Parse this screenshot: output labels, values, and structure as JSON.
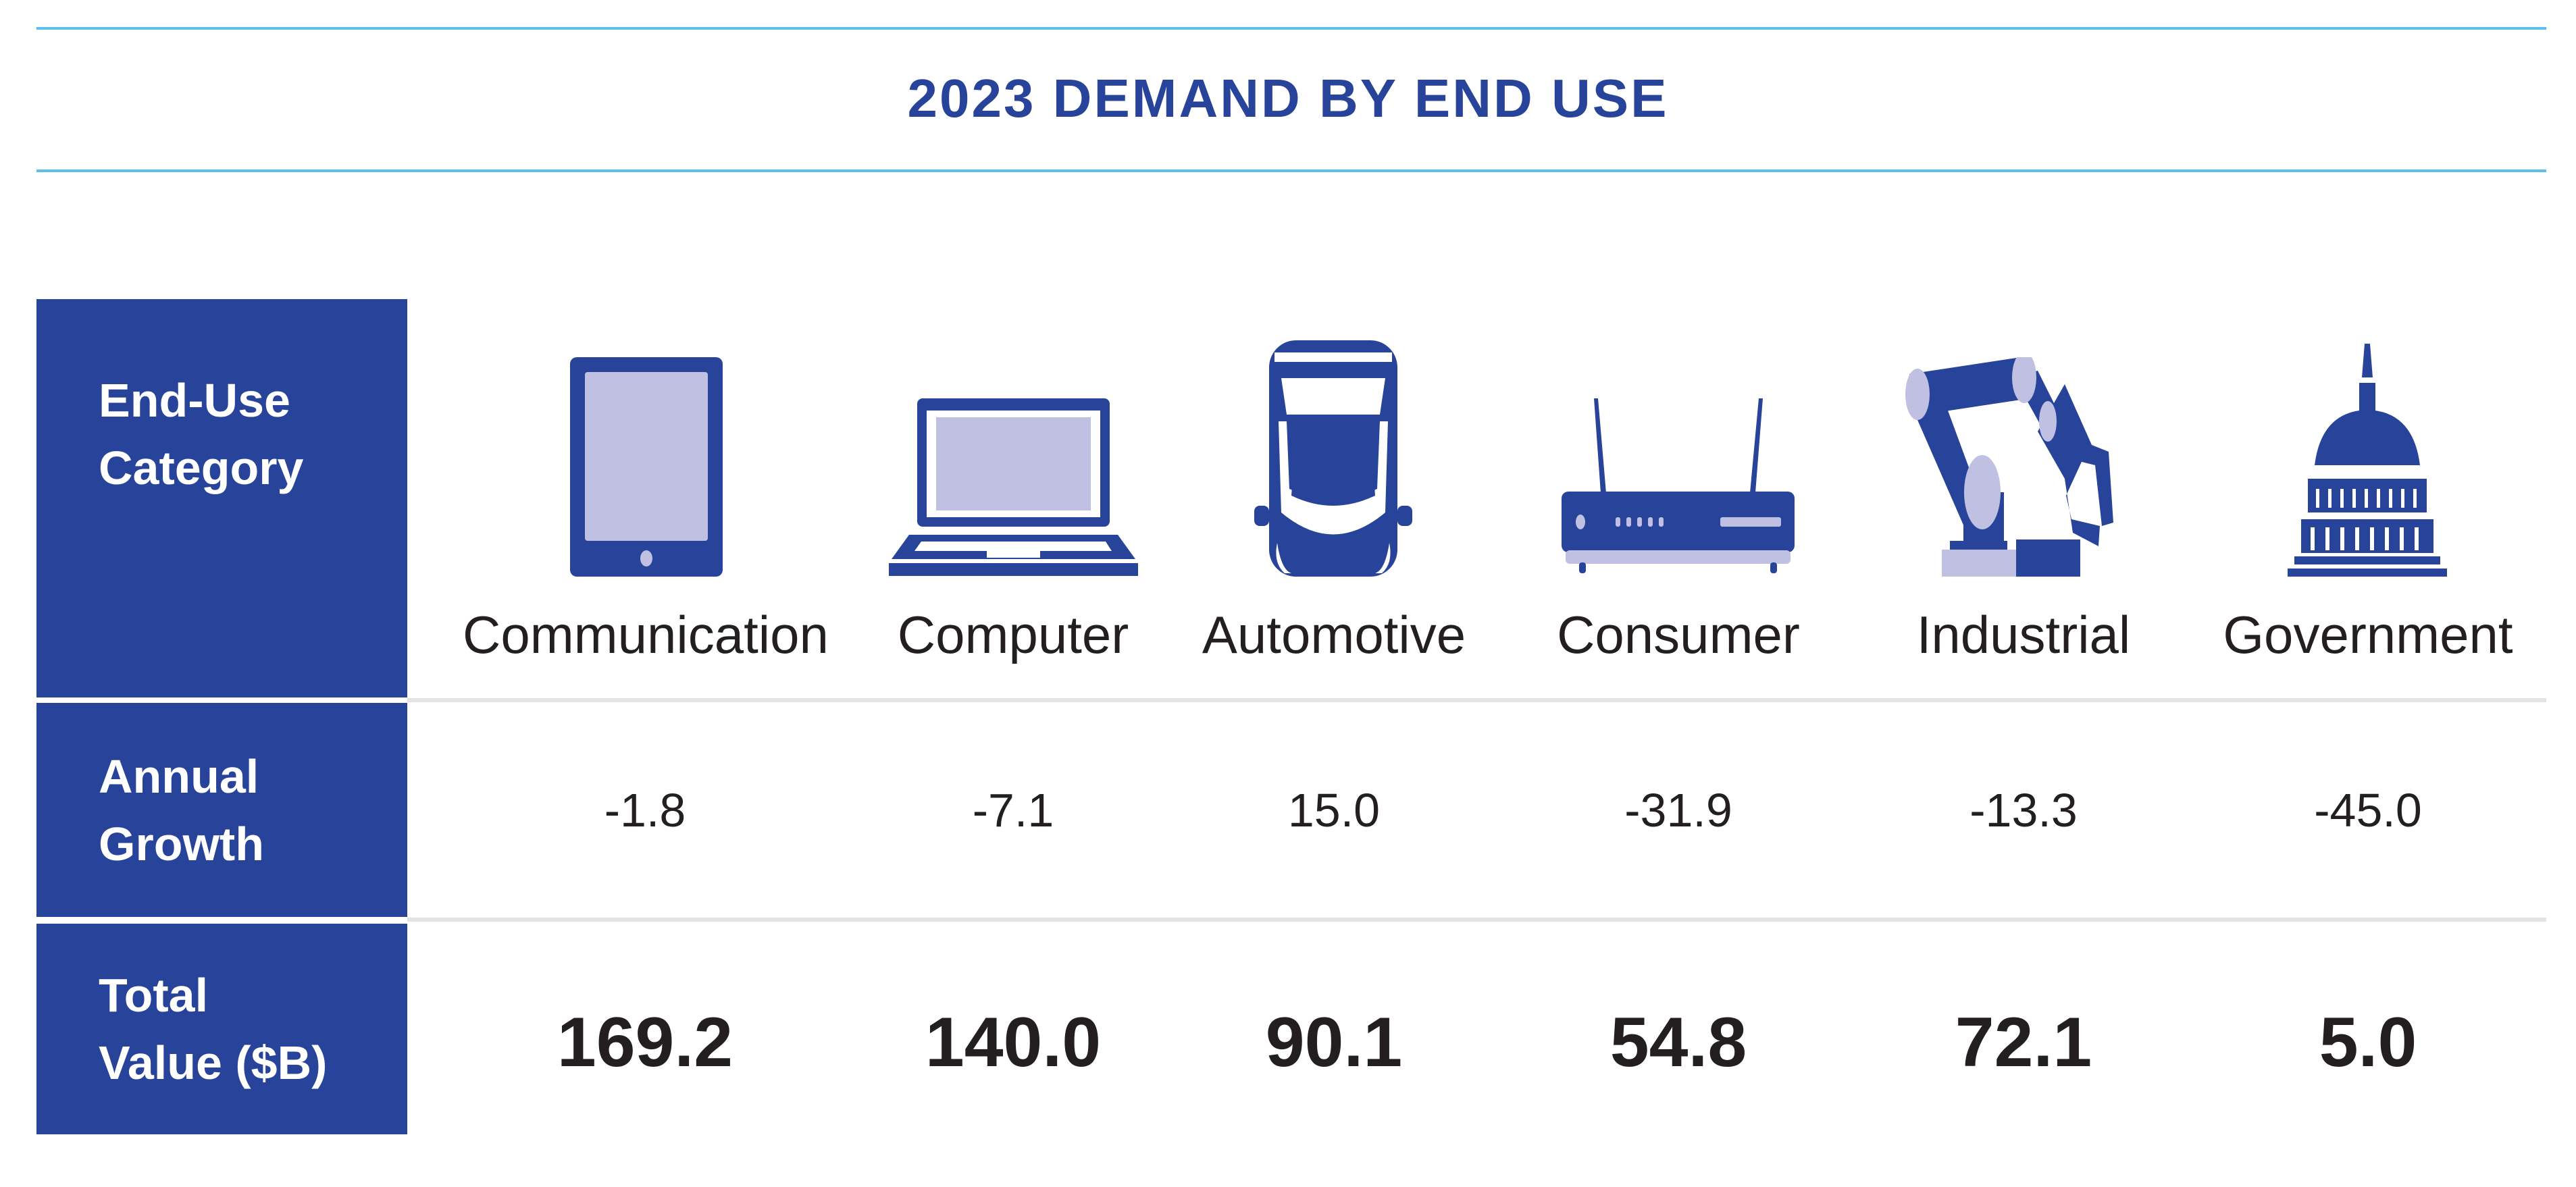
{
  "title": "2023 DEMAND BY END USE",
  "row_headers": {
    "category": [
      "End-Use",
      "Category"
    ],
    "growth": [
      "Annual",
      "Growth"
    ],
    "total": [
      "Total",
      "Value ($B)"
    ]
  },
  "columns": [
    {
      "label": "Communication",
      "icon": "tablet-icon",
      "growth": "-1.8",
      "total": "169.2"
    },
    {
      "label": "Computer",
      "icon": "laptop-icon",
      "growth": "-7.1",
      "total": "140.0"
    },
    {
      "label": "Automotive",
      "icon": "car-icon",
      "growth": "15.0",
      "total": "90.1"
    },
    {
      "label": "Consumer",
      "icon": "router-icon",
      "growth": "-31.9",
      "total": "54.8"
    },
    {
      "label": "Industrial",
      "icon": "robot-arm-icon",
      "growth": "-13.3",
      "total": "72.1"
    },
    {
      "label": "Government",
      "icon": "capitol-icon",
      "growth": "-45.0",
      "total": "5.0"
    }
  ],
  "colors": {
    "primary": "#27449a",
    "light": "#c0c0e2",
    "rule": "#5bc0eb",
    "separator": "#e3e3e3"
  }
}
